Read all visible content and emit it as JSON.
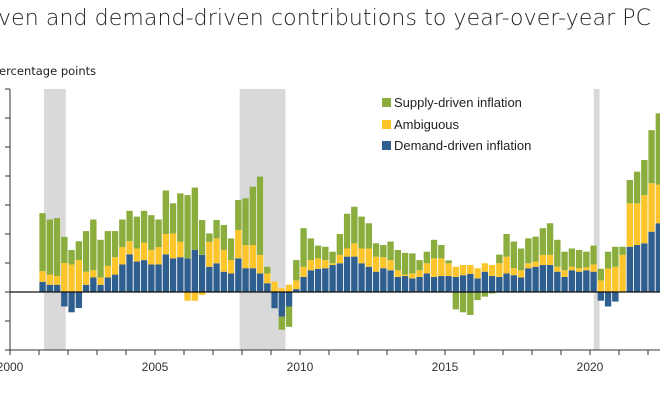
{
  "title": "ven and demand-driven contributions to year-over-year PC",
  "chart_data": {
    "type": "bar",
    "stacked": true,
    "title": "ven and demand-driven contributions to year-over-year PC",
    "ylabel": "ercentage points",
    "xlabel": "",
    "ylim": [
      -2,
      7
    ],
    "xlim": [
      2000,
      2022.4
    ],
    "x_tick_labels": [
      "2000",
      "2005",
      "2010",
      "2015",
      "2020"
    ],
    "x_tick_values": [
      2000,
      2005,
      2010,
      2015,
      2020
    ],
    "grid": false,
    "legend_position": "top-center",
    "categories": [
      "2001Q1",
      "2001Q2",
      "2001Q3",
      "2001Q4",
      "2002Q1",
      "2002Q2",
      "2002Q3",
      "2002Q4",
      "2003Q1",
      "2003Q2",
      "2003Q3",
      "2003Q4",
      "2004Q1",
      "2004Q2",
      "2004Q3",
      "2004Q4",
      "2005Q1",
      "2005Q2",
      "2005Q3",
      "2005Q4",
      "2006Q1",
      "2006Q2",
      "2006Q3",
      "2006Q4",
      "2007Q1",
      "2007Q2",
      "2007Q3",
      "2007Q4",
      "2008Q1",
      "2008Q2",
      "2008Q3",
      "2008Q4",
      "2009Q1",
      "2009Q2",
      "2009Q3",
      "2009Q4",
      "2010Q1",
      "2010Q2",
      "2010Q3",
      "2010Q4",
      "2011Q1",
      "2011Q2",
      "2011Q3",
      "2011Q4",
      "2012Q1",
      "2012Q2",
      "2012Q3",
      "2012Q4",
      "2013Q1",
      "2013Q2",
      "2013Q3",
      "2013Q4",
      "2014Q1",
      "2014Q2",
      "2014Q3",
      "2014Q4",
      "2015Q1",
      "2015Q2",
      "2015Q3",
      "2015Q4",
      "2016Q1",
      "2016Q2",
      "2016Q3",
      "2016Q4",
      "2017Q1",
      "2017Q2",
      "2017Q3",
      "2017Q4",
      "2018Q1",
      "2018Q2",
      "2018Q3",
      "2018Q4",
      "2019Q1",
      "2019Q2",
      "2019Q3",
      "2019Q4",
      "2020Q1",
      "2020Q2",
      "2020Q3",
      "2020Q4",
      "2021Q1",
      "2021Q2",
      "2021Q3",
      "2021Q4",
      "2022Q1",
      "2022Q2"
    ],
    "series": [
      {
        "name": "Demand-driven inflation",
        "color": "#2f5f8f",
        "values": [
          0.35,
          0.25,
          0.25,
          -0.5,
          -0.7,
          -0.55,
          0.25,
          0.5,
          0.25,
          0.5,
          0.6,
          0.95,
          1.3,
          1.05,
          1.1,
          0.95,
          0.95,
          1.3,
          1.16,
          1.2,
          1.16,
          1.45,
          1.28,
          0.87,
          0.99,
          0.7,
          0.64,
          1.16,
          0.82,
          0.82,
          0.64,
          0.3,
          -0.56,
          -0.85,
          -0.5,
          0.1,
          0.52,
          0.75,
          0.8,
          0.82,
          0.93,
          0.99,
          1.22,
          1.22,
          0.99,
          0.87,
          0.7,
          0.82,
          0.75,
          0.52,
          0.55,
          0.47,
          0.52,
          0.64,
          0.52,
          0.55,
          0.55,
          0.52,
          0.58,
          0.62,
          0.47,
          0.7,
          0.55,
          0.52,
          0.64,
          0.58,
          0.5,
          0.82,
          0.87,
          0.93,
          0.93,
          0.7,
          0.52,
          0.75,
          0.7,
          0.75,
          0.7,
          -0.3,
          -0.5,
          -0.33,
          0.0,
          1.56,
          1.62,
          1.68,
          2.08,
          2.37
        ]
      },
      {
        "name": "Ambiguous",
        "color": "#fbc52b",
        "values": [
          0.37,
          0.35,
          0.3,
          1.0,
          0.95,
          1.1,
          0.45,
          0.25,
          0.25,
          0.4,
          0.6,
          0.6,
          0.45,
          0.45,
          0.6,
          0.5,
          0.6,
          0.7,
          0.86,
          0.53,
          -0.3,
          -0.3,
          -0.1,
          0.86,
          0.86,
          0.75,
          0.46,
          0.98,
          0.8,
          0.8,
          0.64,
          0.34,
          0.36,
          0.13,
          0.25,
          0.3,
          0.35,
          0.35,
          0.36,
          0.28,
          0.06,
          0.29,
          0.28,
          0.46,
          0.51,
          0.63,
          0.52,
          0.38,
          0.35,
          0.23,
          0.05,
          0.17,
          0.23,
          0.35,
          0.64,
          0.61,
          0.44,
          0.35,
          0.35,
          0.31,
          0.35,
          0.29,
          0.38,
          0.47,
          0.58,
          0.24,
          0.25,
          0.17,
          0.18,
          0.35,
          0.35,
          0.17,
          0.23,
          0.12,
          0.12,
          0.1,
          0.25,
          0.4,
          0.81,
          0.87,
          1.28,
          1.5,
          1.44,
          1.66,
          1.67,
          1.33
        ]
      },
      {
        "name": "Supply-driven inflation",
        "color": "#8aad3d",
        "values": [
          2.0,
          1.9,
          2.0,
          0.9,
          0.5,
          0.65,
          1.4,
          1.75,
          1.3,
          1.2,
          0.9,
          0.95,
          1.05,
          1.1,
          1.1,
          1.2,
          0.95,
          1.5,
          1.04,
          1.67,
          2.18,
          2.15,
          1.2,
          0.29,
          0.63,
          0.86,
          0.75,
          1.03,
          1.61,
          2.01,
          2.7,
          0.23,
          0.0,
          -0.45,
          -0.7,
          0.7,
          1.33,
          0.75,
          0.44,
          0.46,
          0.4,
          0.72,
          1.2,
          1.26,
          1.1,
          0.87,
          0.46,
          0.42,
          0.64,
          0.7,
          0.75,
          0.69,
          0.35,
          0.4,
          0.64,
          0.46,
          0.1,
          -0.6,
          -0.7,
          -0.79,
          -0.28,
          -0.16,
          -0.05,
          0.3,
          0.78,
          0.92,
          0.75,
          0.86,
          0.86,
          0.92,
          1.09,
          0.93,
          0.64,
          0.63,
          0.63,
          0.54,
          0.65,
          0.4,
          0.58,
          0.69,
          0.28,
          0.8,
          1.09,
          1.21,
          1.83,
          2.46
        ]
      }
    ],
    "legend": [
      "Supply-driven inflation",
      "Ambiguous",
      "Demand-driven inflation"
    ],
    "recession_shading": [
      [
        2001.17,
        2001.92
      ],
      [
        2007.92,
        2009.5
      ],
      [
        2020.13,
        2020.33
      ]
    ],
    "shading_color": "#d9d9d9"
  }
}
